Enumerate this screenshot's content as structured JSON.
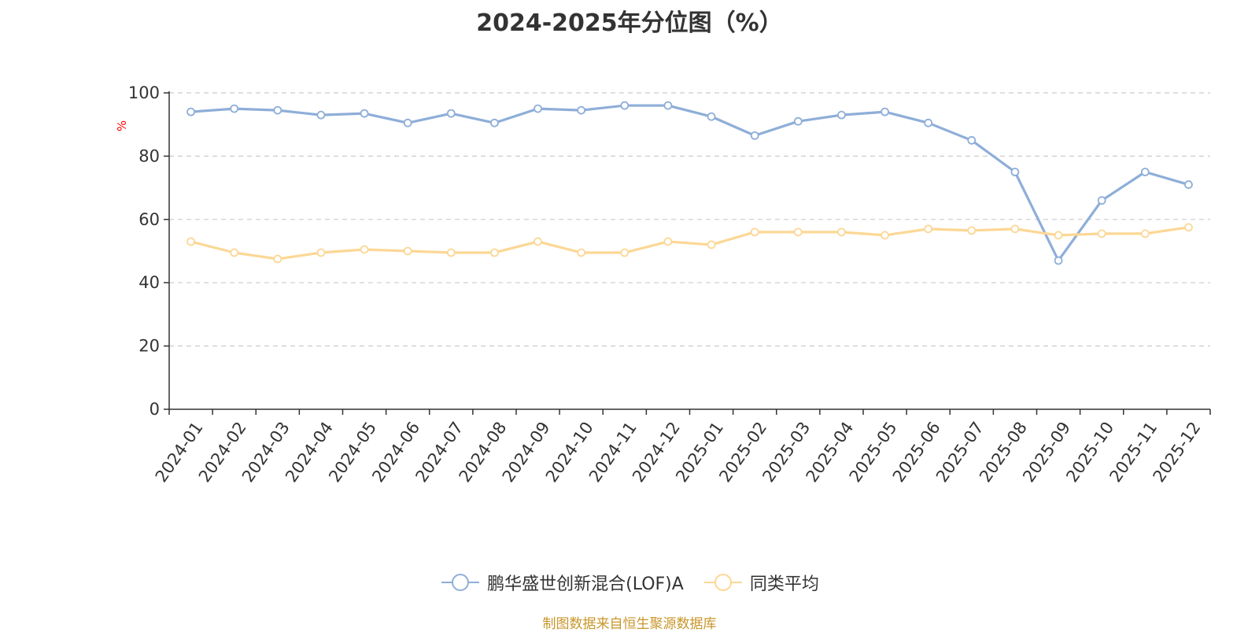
{
  "chart_data": {
    "type": "line",
    "title": "2024-2025年分位图（%）",
    "ylabel": "%",
    "ylim": [
      0,
      100
    ],
    "yticks": [
      0,
      20,
      40,
      60,
      80,
      100
    ],
    "grid": true,
    "legend_position": "bottom",
    "categories": [
      "2024-01",
      "2024-02",
      "2024-03",
      "2024-04",
      "2024-05",
      "2024-06",
      "2024-07",
      "2024-08",
      "2024-09",
      "2024-10",
      "2024-11",
      "2024-12",
      "2025-01",
      "2025-02",
      "2025-03",
      "2025-04",
      "2025-05",
      "2025-06",
      "2025-07",
      "2025-08",
      "2025-09",
      "2025-10",
      "2025-11",
      "2025-12"
    ],
    "series": [
      {
        "name": "鹏华盛世创新混合(LOF)A",
        "color": "#8eaed8",
        "values": [
          94,
          95,
          94.5,
          93,
          93.5,
          90.5,
          93.5,
          90.5,
          95,
          94.5,
          96,
          96,
          92.5,
          86.5,
          91,
          93,
          94,
          90.5,
          85,
          75,
          47,
          66,
          75,
          71
        ]
      },
      {
        "name": "同类平均",
        "color": "#fcd795",
        "values": [
          53,
          49.5,
          47.5,
          49.5,
          50.5,
          50,
          49.5,
          49.5,
          53,
          49.5,
          49.5,
          53,
          52,
          56,
          56,
          56,
          55,
          57,
          56.5,
          57,
          55,
          55.5,
          55.5,
          57.5
        ]
      }
    ]
  },
  "source_note": "制图数据来自恒生聚源数据库"
}
